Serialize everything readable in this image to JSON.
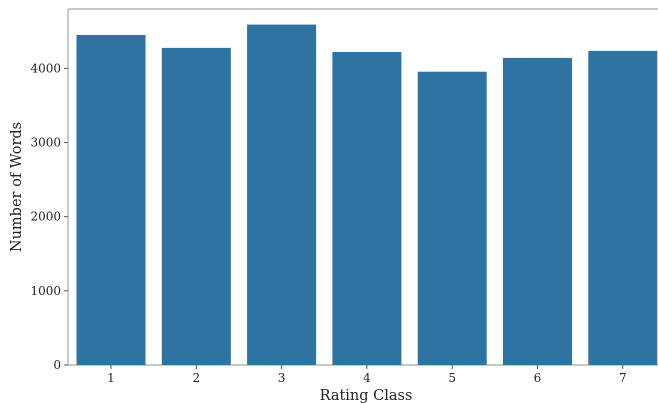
{
  "chart_data": {
    "type": "bar",
    "categories": [
      "1",
      "2",
      "3",
      "4",
      "5",
      "6",
      "7"
    ],
    "values": [
      4450,
      4275,
      4590,
      4220,
      3955,
      4140,
      4235
    ],
    "xlabel": "Rating Class",
    "ylabel": "Number of Words",
    "ylim": [
      0,
      4800
    ],
    "yticks": [
      0,
      1000,
      2000,
      3000,
      4000
    ],
    "bar_color": "#2e73a2",
    "grid": false
  }
}
